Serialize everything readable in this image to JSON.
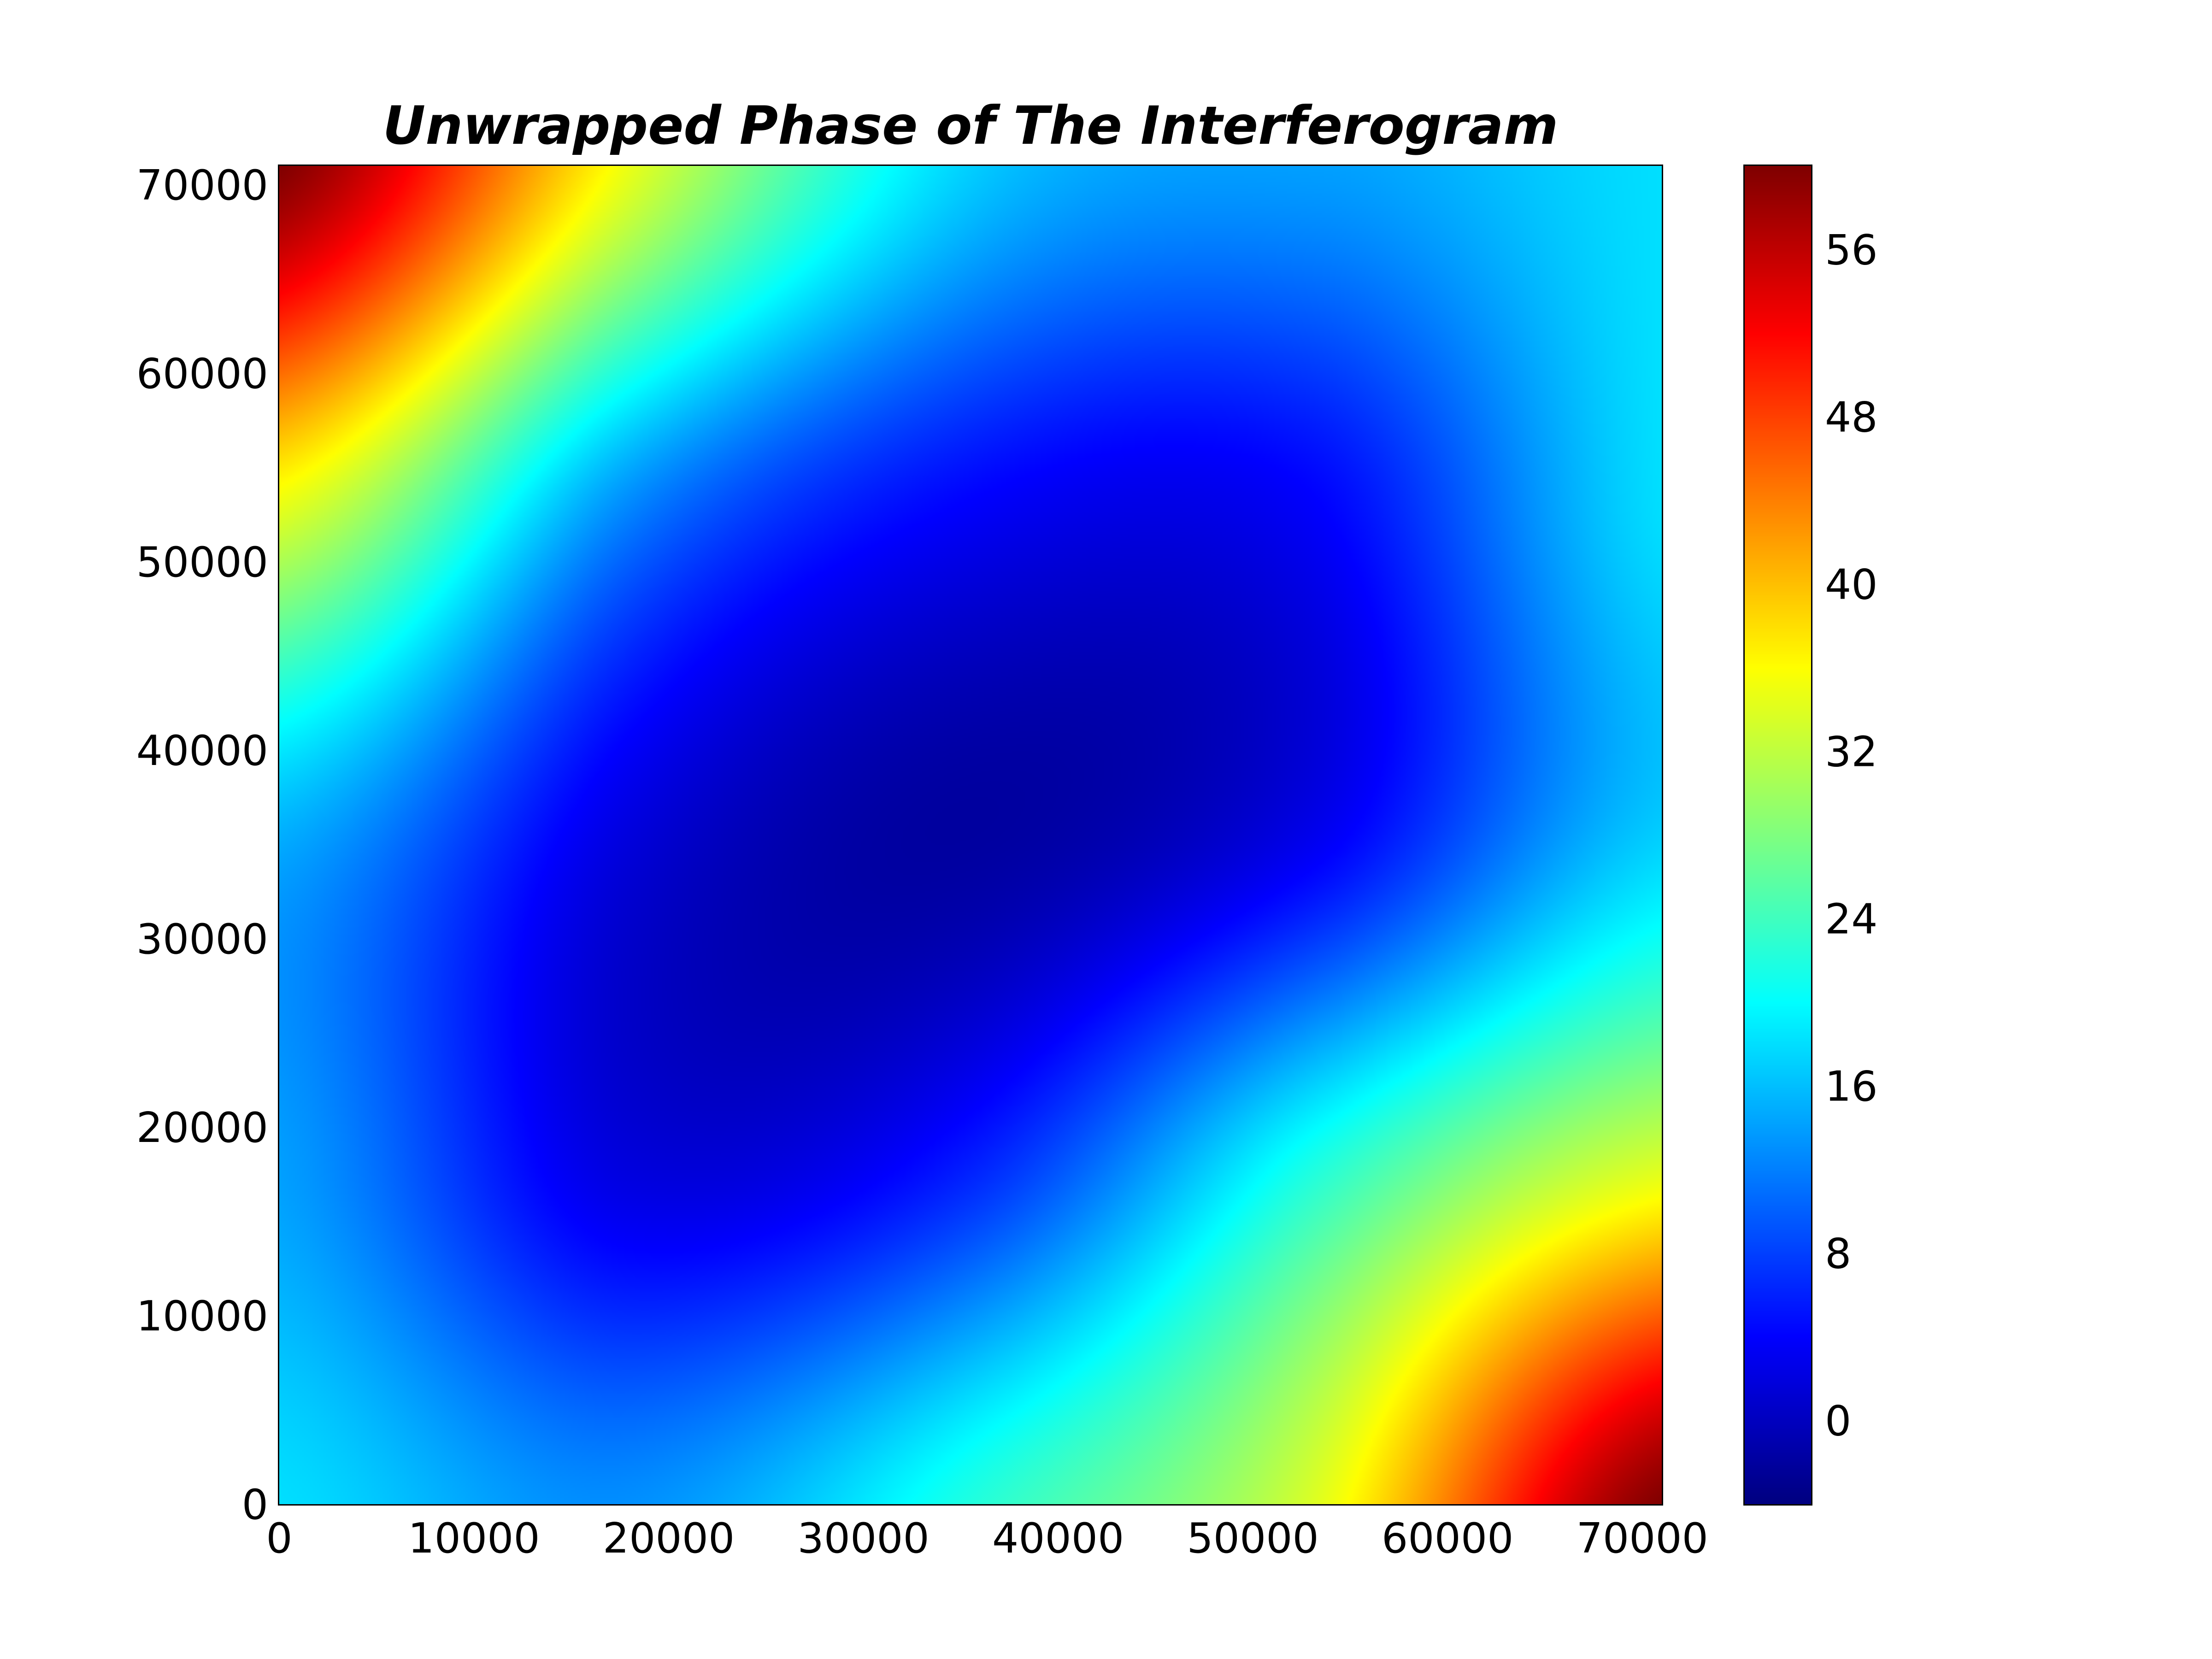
{
  "chart_data": {
    "type": "heatmap",
    "title": "Unwrapped Phase of The Interferogram",
    "xlabel": "",
    "ylabel": "",
    "xlim": [
      0,
      71000
    ],
    "ylim": [
      0,
      71000
    ],
    "x_ticks": [
      0,
      10000,
      20000,
      30000,
      40000,
      50000,
      60000,
      70000
    ],
    "x_tick_labels": [
      "0",
      "10000",
      "20000",
      "30000",
      "40000",
      "50000",
      "60000",
      "70000"
    ],
    "y_ticks": [
      0,
      10000,
      20000,
      30000,
      40000,
      50000,
      60000,
      70000
    ],
    "y_tick_labels": [
      "0",
      "10000",
      "20000",
      "30000",
      "40000",
      "50000",
      "60000",
      "70000"
    ],
    "colormap": "jet",
    "colorbar": {
      "range": [
        -4,
        60
      ],
      "ticks": [
        0,
        8,
        16,
        24,
        32,
        40,
        48,
        56
      ],
      "tick_labels": [
        "0",
        "8",
        "16",
        "24",
        "32",
        "40",
        "48",
        "56"
      ],
      "position": "right"
    },
    "grid": false,
    "grid_x": [
      0,
      17750,
      35500,
      53250,
      71000
    ],
    "grid_y": [
      0,
      17750,
      35500,
      53250,
      71000
    ],
    "z": [
      [
        18,
        13,
        22,
        34,
        60
      ],
      [
        14,
        2,
        6,
        22,
        34
      ],
      [
        15,
        2,
        -2,
        3,
        17
      ],
      [
        35,
        13,
        4,
        4,
        18
      ],
      [
        60,
        35,
        17,
        14,
        18
      ]
    ]
  }
}
